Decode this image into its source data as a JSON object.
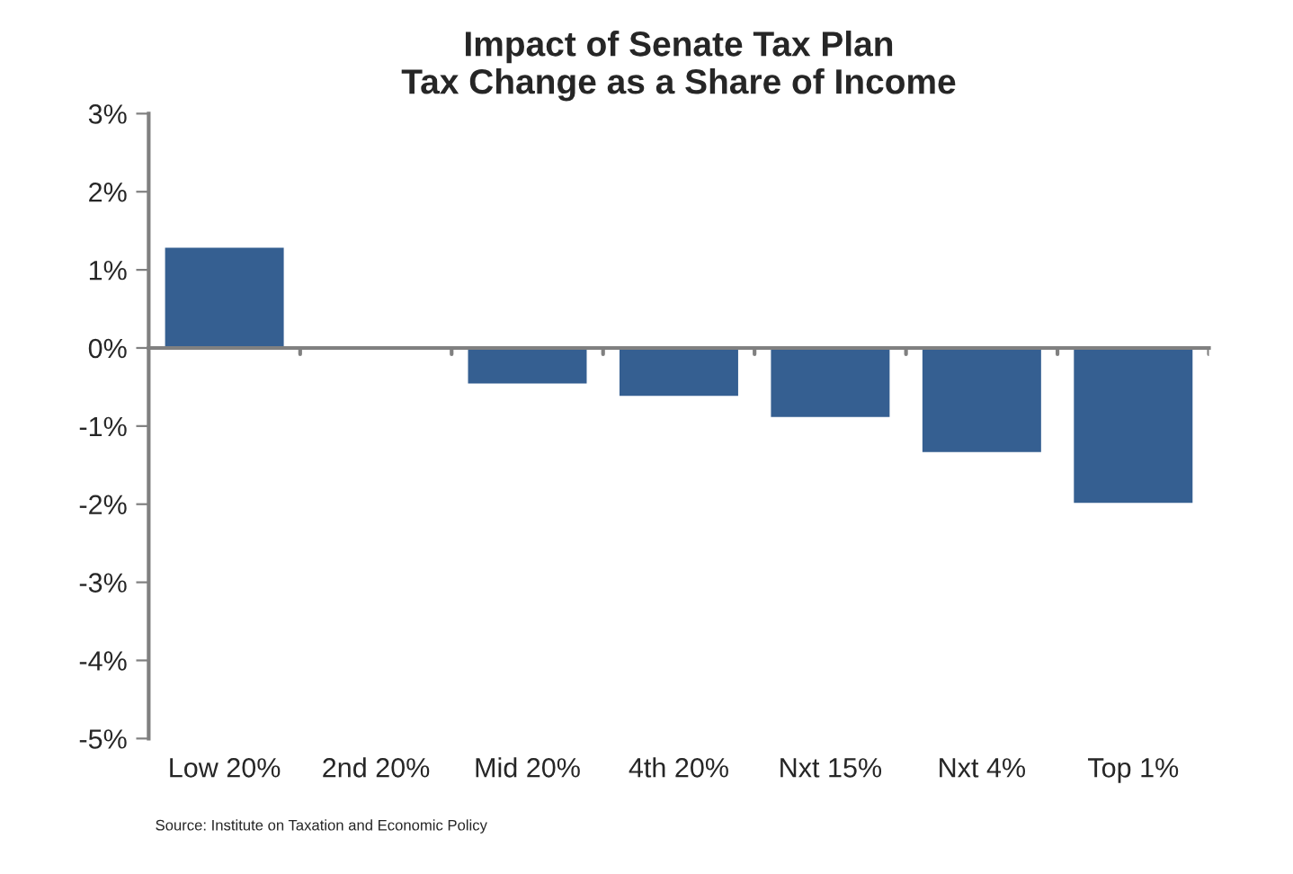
{
  "chart_data": {
    "type": "bar",
    "title": "Impact of Senate Tax Plan\nTax Change as a Share of Income",
    "categories": [
      "Low 20%",
      "2nd 20%",
      "Mid 20%",
      "4th 20%",
      "Nxt 15%",
      "Nxt 4%",
      "Top 1%"
    ],
    "values": [
      1.3,
      -0.02,
      -0.47,
      -0.63,
      -0.9,
      -1.35,
      -2.0
    ],
    "color": "#355f91",
    "ylim": [
      -5,
      3
    ],
    "yticks": [
      {
        "value": -5,
        "label": "-5%"
      },
      {
        "value": -4,
        "label": "-4%"
      },
      {
        "value": -3,
        "label": "-3%"
      },
      {
        "value": -2,
        "label": "-2%"
      },
      {
        "value": -1,
        "label": "-1%"
      },
      {
        "value": 0,
        "label": "0%"
      },
      {
        "value": 1,
        "label": "1%"
      },
      {
        "value": 2,
        "label": "2%"
      },
      {
        "value": 3,
        "label": "3%"
      }
    ],
    "annotations": [
      "Source: Institute on Taxation and Economic Policy"
    ]
  }
}
